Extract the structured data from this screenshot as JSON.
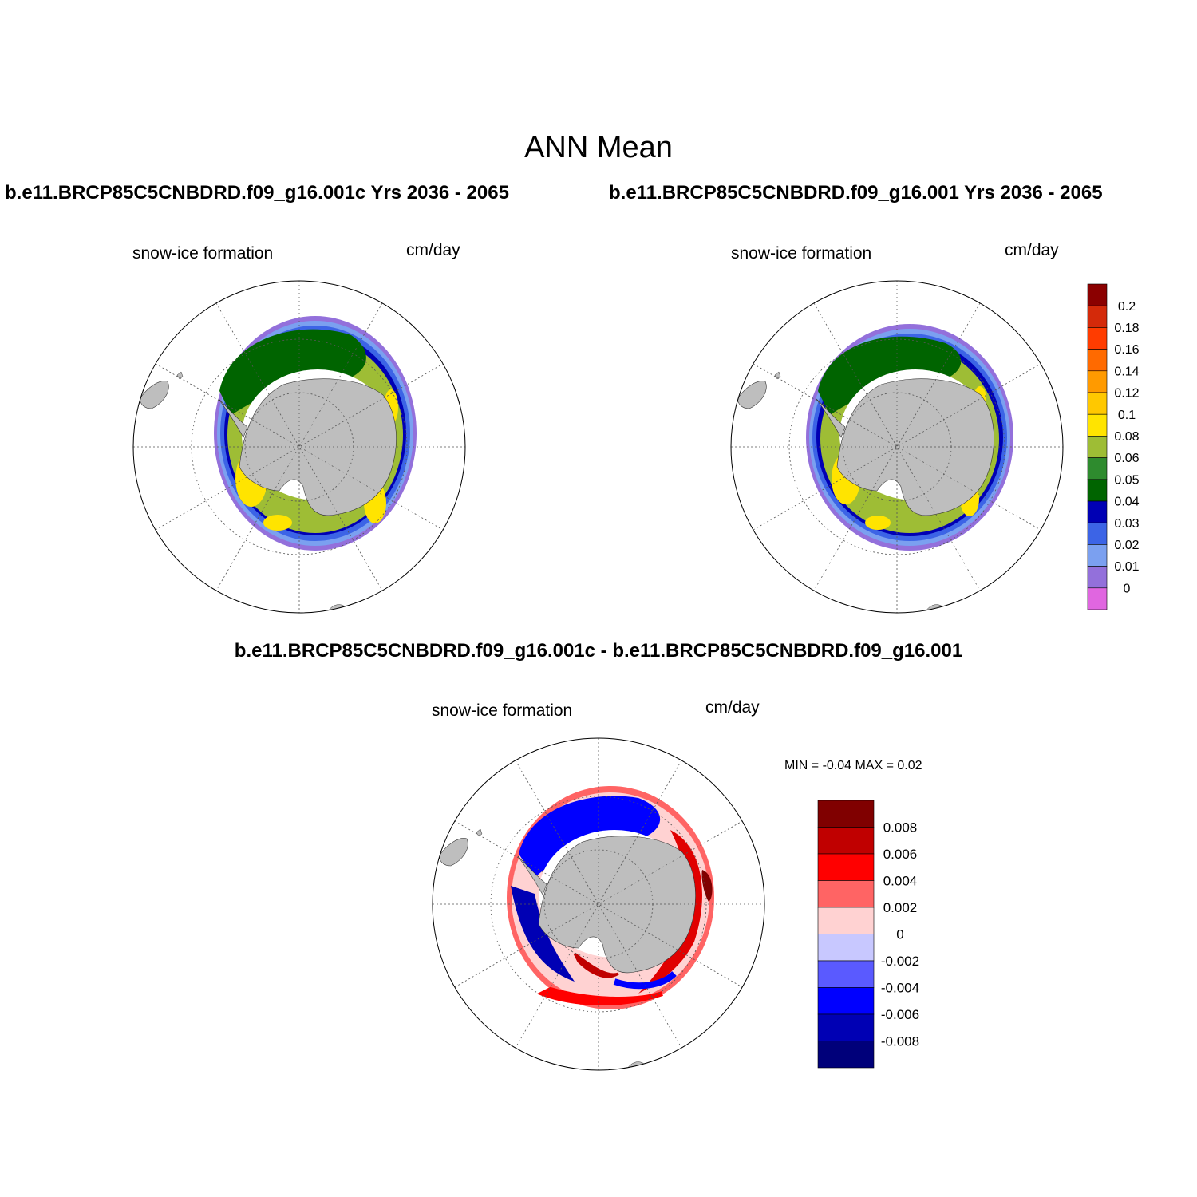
{
  "title": "ANN Mean",
  "case_left": "b.e11.BRCP85C5CNBDRD.f09_g16.001c  Yrs 2036 - 2065",
  "case_right": "b.e11.BRCP85C5CNBDRD.f09_g16.001  Yrs 2036 - 2065",
  "diff_title": "b.e11.BRCP85C5CNBDRD.f09_g16.001c - b.e11.BRCP85C5CNBDRD.f09_g16.001",
  "panels": [
    {
      "variable": "snow-ice formation",
      "units": "cm/day"
    },
    {
      "variable": "snow-ice formation",
      "units": "cm/day"
    },
    {
      "variable": "snow-ice formation",
      "units": "cm/day"
    }
  ],
  "diff_minmax": "MIN =  -0.04 MAX =   0.02",
  "colorbar_top": {
    "labels": [
      "0.2",
      "0.18",
      "0.16",
      "0.14",
      "0.12",
      "0.1",
      "0.08",
      "0.06",
      "0.05",
      "0.04",
      "0.03",
      "0.02",
      "0.01",
      "0"
    ],
    "colors": [
      "#8b0000",
      "#d42a0a",
      "#ff3c00",
      "#ff6a00",
      "#ff9a00",
      "#ffc800",
      "#ffe400",
      "#9ebd35",
      "#2e8b2e",
      "#006400",
      "#0000b4",
      "#3c64e6",
      "#7ba0f0",
      "#9370db",
      "#e066e0"
    ]
  },
  "colorbar_diff": {
    "labels": [
      "0.008",
      "0.006",
      "0.004",
      "0.002",
      "0",
      "-0.002",
      "-0.004",
      "-0.006",
      "-0.008"
    ],
    "colors": [
      "#800000",
      "#c00000",
      "#ff0000",
      "#ff6464",
      "#ffd2d2",
      "#c8c8ff",
      "#5a5aff",
      "#0000ff",
      "#0000b4",
      "#00007a"
    ]
  }
}
